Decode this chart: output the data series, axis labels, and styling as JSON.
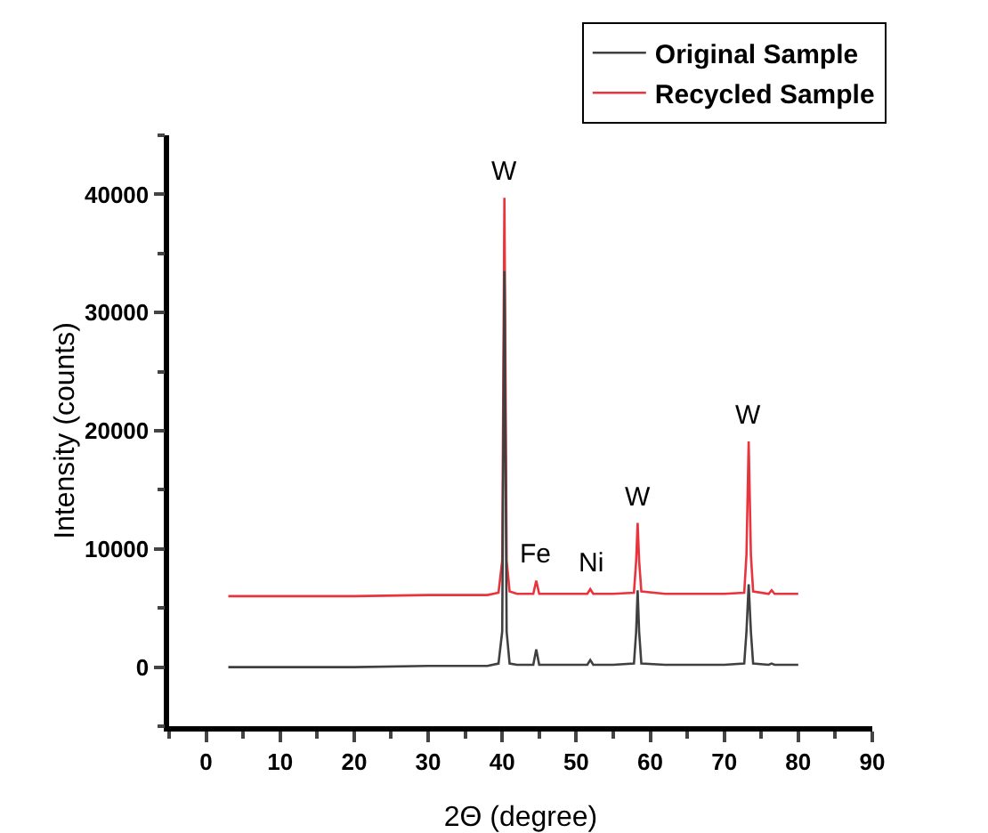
{
  "chart_data": {
    "type": "line",
    "xlabel": "2Θ (degree)",
    "ylabel": "Intensity (counts)",
    "xlim": [
      -5,
      90
    ],
    "xticks": [
      0,
      10,
      20,
      30,
      40,
      50,
      60,
      70,
      80,
      90
    ],
    "ylim": [
      -5000,
      45000
    ],
    "yticks": [
      0,
      10000,
      20000,
      30000,
      40000
    ],
    "grid": false,
    "legend": "top right",
    "marker": "none",
    "line_style": "solid",
    "series": [
      {
        "name": "Original Sample",
        "color": "#404040",
        "x": [
          3,
          10,
          20,
          30,
          38,
          39.5,
          40,
          40.3,
          40.6,
          41,
          42,
          44.2,
          44.6,
          45,
          48,
          51.5,
          51.9,
          52.3,
          55,
          57.8,
          58.1,
          58.3,
          58.5,
          58.8,
          62,
          66,
          70,
          72.7,
          73.0,
          73.3,
          73.6,
          73.9,
          76,
          76.4,
          76.8,
          80
        ],
        "values": [
          0,
          0,
          0,
          100,
          100,
          300,
          3000,
          33500,
          3000,
          300,
          200,
          200,
          1500,
          200,
          200,
          200,
          600,
          200,
          200,
          300,
          3000,
          6500,
          3000,
          300,
          200,
          200,
          200,
          300,
          3000,
          7000,
          3000,
          300,
          200,
          300,
          200,
          200
        ]
      },
      {
        "name": "Recycled Sample",
        "color": "#e8343c",
        "x": [
          3,
          10,
          20,
          30,
          38,
          39.5,
          40,
          40.3,
          40.6,
          41,
          42,
          44.2,
          44.6,
          45,
          48,
          51.5,
          51.9,
          52.3,
          55,
          57.8,
          58.1,
          58.3,
          58.5,
          58.8,
          62,
          66,
          70,
          72.7,
          73.0,
          73.3,
          73.6,
          73.9,
          76,
          76.4,
          76.8,
          80
        ],
        "values": [
          6000,
          6000,
          6000,
          6100,
          6100,
          6300,
          9000,
          39700,
          9000,
          6400,
          6200,
          6200,
          7300,
          6200,
          6200,
          6200,
          6600,
          6200,
          6200,
          6300,
          9000,
          12200,
          9000,
          6400,
          6200,
          6200,
          6200,
          6300,
          9500,
          19100,
          9500,
          6400,
          6200,
          6500,
          6200,
          6200
        ]
      }
    ],
    "annotations": [
      {
        "text": "W",
        "x": 40.3,
        "y": 39700
      },
      {
        "text": "Fe",
        "x": 44.6,
        "y": 7300
      },
      {
        "text": "Ni",
        "x": 51.9,
        "y": 6600
      },
      {
        "text": "W",
        "x": 58.3,
        "y": 12200
      },
      {
        "text": "W",
        "x": 73.3,
        "y": 19100
      }
    ]
  }
}
